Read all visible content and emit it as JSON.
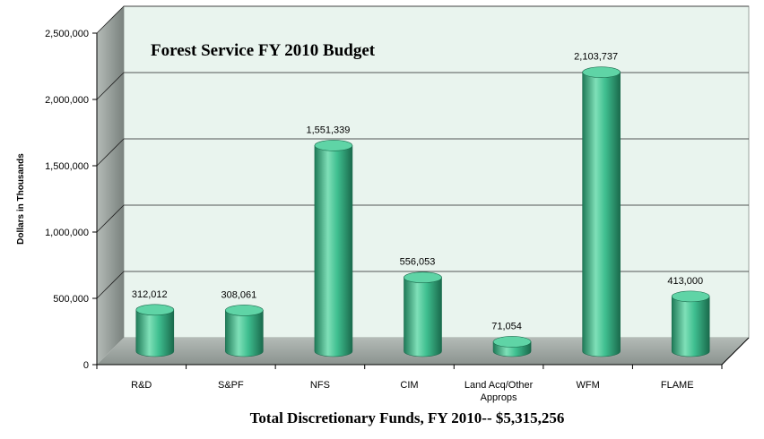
{
  "chart_data": {
    "type": "bar",
    "title": "Forest Service FY 2010 Budget",
    "ylabel": "Dollars in Thousands",
    "xlabel": "",
    "footer": "Total Discretionary Funds,  FY 2010-- $5,315,256",
    "categories": [
      "R&D",
      "S&PF",
      "NFS",
      "CIM",
      "Land Acq/Other Approps",
      "WFM",
      "FLAME"
    ],
    "category_lines": [
      [
        "R&D"
      ],
      [
        "S&PF"
      ],
      [
        "NFS"
      ],
      [
        "CIM"
      ],
      [
        "Land Acq/Other",
        "Approps"
      ],
      [
        "WFM"
      ],
      [
        "FLAME"
      ]
    ],
    "values": [
      312012,
      308061,
      1551339,
      556053,
      71054,
      2103737,
      413000
    ],
    "data_labels": [
      "312,012",
      "308,061",
      "1,551,339",
      "556,053",
      "71,054",
      "2,103,737",
      "413,000"
    ],
    "ylim": [
      0,
      2500000
    ],
    "yticks": [
      0,
      500000,
      1000000,
      1500000,
      2000000,
      2500000
    ],
    "ytick_labels": [
      "0",
      "500,000",
      "1,000,000",
      "1,500,000",
      "2,000,000",
      "2,500,000"
    ],
    "grid": true,
    "style": "3d-cylinder",
    "colors": {
      "bar_light": "#7fe0b8",
      "bar_mid": "#3fbf90",
      "bar_dark": "#1f7a58",
      "bar_top": "#5fd4a6",
      "back_wall": "#e9f4ee",
      "side_wall": "#8c9590",
      "floor": "#9aa39e",
      "grid": "#222222"
    }
  }
}
